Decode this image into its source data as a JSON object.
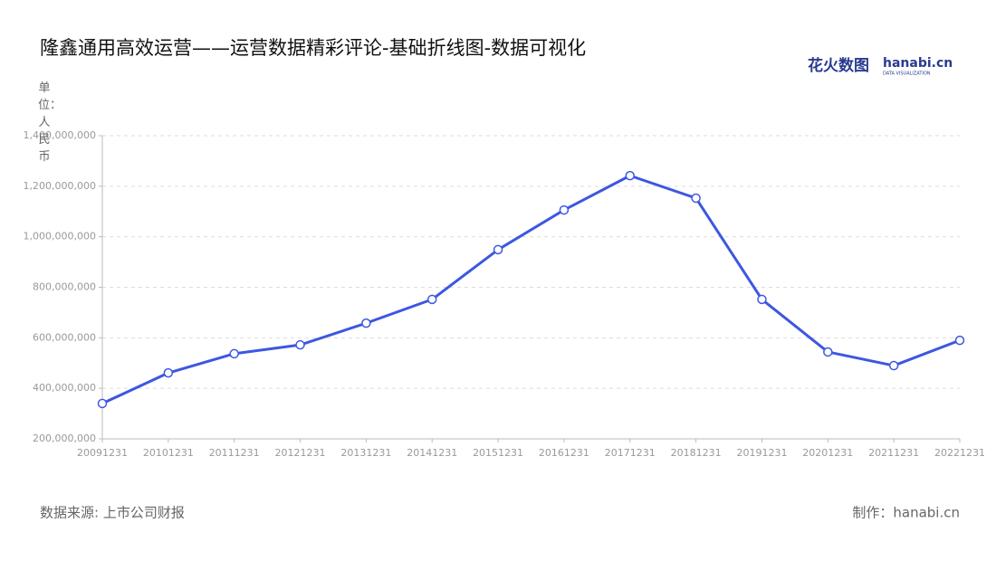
{
  "chart_data": {
    "type": "line",
    "title": "隆鑫通用高效运营——运营数据精彩评论-基础折线图-数据可视化",
    "y_axis_label": "单位：人民币",
    "logo": {
      "brand": "花火数图",
      "site": "hanabi.cn",
      "tagline": "DATA VISUALIZATION"
    },
    "source": "数据来源: 上市公司财报",
    "credit": "制作：hanabi.cn",
    "categories": [
      "20091231",
      "20101231",
      "20111231",
      "20121231",
      "20131231",
      "20141231",
      "20151231",
      "20161231",
      "20171231",
      "20181231",
      "20191231",
      "20201231",
      "20211231",
      "20221231"
    ],
    "series": [
      {
        "color": "#3d57e0",
        "values": [
          340000000,
          461000000,
          537000000,
          572000000,
          658000000,
          752000000,
          949000000,
          1106000000,
          1242000000,
          1153000000,
          752000000,
          544000000,
          490000000,
          590000000
        ]
      }
    ],
    "ylim": [
      200000000,
      1400000000
    ],
    "yticks": [
      {
        "value": 200000000,
        "label": "200,000,000"
      },
      {
        "value": 400000000,
        "label": "400,000,000"
      },
      {
        "value": 600000000,
        "label": "600,000,000"
      },
      {
        "value": 800000000,
        "label": "800,000,000"
      },
      {
        "value": 1000000000,
        "label": "1,000,000,000"
      },
      {
        "value": 1200000000,
        "label": "1,200,000,000"
      },
      {
        "value": 1400000000,
        "label": "1,400,000,000"
      }
    ],
    "grid": true
  }
}
